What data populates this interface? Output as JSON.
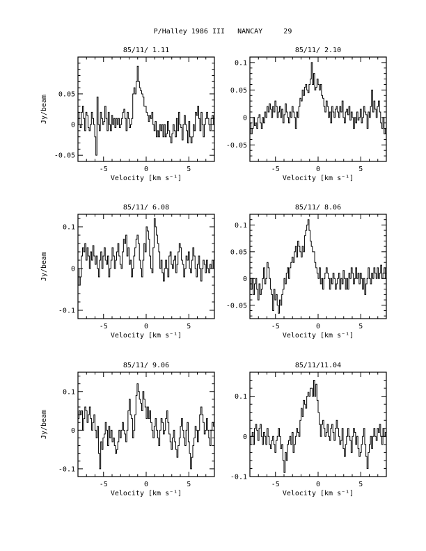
{
  "page": {
    "title": "P/Halley 1986 III   NANCAY     29"
  },
  "chart_data": [
    {
      "type": "line",
      "style": "step",
      "title": "85/11/ 1.11",
      "xlabel": "Velocity [km s⁻¹]",
      "ylabel": "Jy/beam",
      "xlim": [
        -8,
        8
      ],
      "ylim": [
        -0.06,
        0.11
      ],
      "xticks": [
        -5,
        0,
        5
      ],
      "yticks": [
        -0.05,
        0,
        0.05
      ],
      "ytick_labels": [
        "-0.05",
        "0",
        "0.05"
      ],
      "grid": false,
      "series": [
        {
          "values": [
            0.02,
            0.0,
            -0.005,
            0.02,
            0.03,
            0.01,
            -0.01,
            0.02,
            0.015,
            -0.005,
            -0.01,
            0.0,
            0.02,
            0.01,
            0.0,
            -0.02,
            -0.05,
            0.045,
            0.0,
            -0.01,
            0.02,
            0.01,
            0.0,
            0.005,
            0.03,
            0.01,
            -0.01,
            0.02,
            0.0,
            -0.01,
            0.015,
            0.0,
            0.01,
            -0.005,
            0.01,
            0.0,
            0.01,
            -0.005,
            0.0,
            0.01,
            0.02,
            0.025,
            0.01,
            -0.01,
            0.02,
            0.01,
            -0.005,
            0.0,
            0.01,
            0.05,
            0.06,
            0.05,
            0.07,
            0.095,
            0.07,
            0.06,
            0.055,
            0.05,
            0.045,
            0.03,
            0.03,
            0.02,
            0.015,
            0.005,
            0.015,
            0.01,
            0.02,
            0.0,
            -0.01,
            0.005,
            -0.02,
            -0.01,
            -0.02,
            0.0,
            -0.01,
            0.0,
            -0.02,
            0.0,
            -0.02,
            -0.015,
            0.005,
            -0.01,
            -0.02,
            -0.03,
            -0.015,
            0.0,
            -0.01,
            -0.02,
            0.01,
            -0.01,
            0.02,
            0.0,
            -0.005,
            -0.025,
            0.0,
            0.015,
            0.0,
            -0.01,
            -0.03,
            0.005,
            -0.02,
            -0.03,
            -0.02,
            0.0,
            -0.01,
            0.02,
            0.015,
            0.03,
            0.01,
            -0.01,
            0.02,
            0.0,
            -0.02,
            0.0,
            0.01,
            0.02,
            0.01,
            0.0,
            -0.01,
            0.01,
            0.015,
            0.0
          ]
        }
      ]
    },
    {
      "type": "line",
      "style": "step",
      "title": "85/11/ 2.10",
      "xlabel": "Velocity [km s⁻¹]",
      "ylabel": "",
      "xlim": [
        -8,
        8
      ],
      "ylim": [
        -0.08,
        0.11
      ],
      "xticks": [
        -5,
        0,
        5
      ],
      "yticks": [
        -0.05,
        0,
        0.05,
        0.1
      ],
      "ytick_labels": [
        "-0.05",
        "0",
        "0.05",
        "0.1"
      ],
      "grid": false,
      "series": [
        {
          "values": [
            -0.01,
            -0.03,
            -0.02,
            0.0,
            -0.015,
            -0.01,
            -0.02,
            0.0,
            0.005,
            -0.01,
            -0.02,
            0.0,
            -0.01,
            0.01,
            0.0,
            0.02,
            0.01,
            0.025,
            0.015,
            0.0,
            0.02,
            0.01,
            0.03,
            0.02,
            0.0,
            0.01,
            0.02,
            0.0,
            0.015,
            -0.01,
            0.005,
            0.025,
            0.01,
            0.0,
            -0.01,
            0.01,
            0.0,
            0.02,
            0.01,
            0.0,
            -0.02,
            0.01,
            0.0,
            0.02,
            0.035,
            0.03,
            0.05,
            0.04,
            0.055,
            0.06,
            0.05,
            0.045,
            0.06,
            0.07,
            0.1,
            0.06,
            0.08,
            0.05,
            0.055,
            0.07,
            0.06,
            0.05,
            0.06,
            0.04,
            0.035,
            0.02,
            0.01,
            0.03,
            0.02,
            0.0,
            0.01,
            -0.01,
            0.02,
            0.01,
            0.0,
            0.015,
            0.02,
            0.01,
            0.0,
            0.02,
            0.01,
            0.03,
            0.0,
            -0.01,
            0.01,
            0.015,
            0.005,
            0.02,
            -0.005,
            0.01,
            0.0,
            -0.02,
            0.0,
            -0.01,
            0.01,
            -0.005,
            0.0,
            0.015,
            -0.01,
            0.0,
            0.02,
            0.01,
            0.005,
            -0.02,
            0.01,
            0.0,
            0.02,
            0.05,
            0.01,
            0.03,
            0.015,
            0.0,
            0.02,
            0.03,
            0.01,
            -0.01,
            -0.02,
            0.0,
            -0.03,
            -0.02
          ]
        }
      ]
    },
    {
      "type": "line",
      "style": "step",
      "title": "85/11/ 6.08",
      "xlabel": "Velocity [km s⁻¹]",
      "ylabel": "Jy/beam",
      "xlim": [
        -8,
        8
      ],
      "ylim": [
        -0.12,
        0.13
      ],
      "xticks": [
        -5,
        0,
        5
      ],
      "yticks": [
        -0.1,
        0,
        0.1
      ],
      "ytick_labels": [
        "-0.1",
        "0",
        "0.1"
      ],
      "grid": false,
      "series": [
        {
          "values": [
            0.0,
            -0.04,
            -0.02,
            0.03,
            0.05,
            0.04,
            0.06,
            0.02,
            0.05,
            0.03,
            0.0,
            0.04,
            0.02,
            0.055,
            0.03,
            0.01,
            0.03,
            0.0,
            -0.02,
            0.02,
            0.04,
            0.0,
            0.03,
            0.05,
            0.02,
            0.01,
            0.03,
            -0.02,
            0.0,
            0.02,
            0.05,
            0.03,
            0.0,
            0.02,
            0.04,
            0.06,
            0.03,
            0.01,
            0.0,
            0.04,
            0.07,
            0.06,
            0.08,
            0.03,
            0.05,
            0.01,
            0.02,
            -0.02,
            0.0,
            0.03,
            0.05,
            0.07,
            0.08,
            0.06,
            0.02,
            0.0,
            -0.02,
            0.02,
            0.06,
            0.04,
            0.1,
            0.09,
            0.07,
            0.03,
            0.0,
            -0.01,
            0.05,
            0.12,
            0.1,
            0.08,
            0.06,
            0.04,
            0.0,
            0.02,
            -0.01,
            -0.03,
            0.0,
            0.02,
            0.0,
            -0.02,
            0.03,
            0.04,
            0.01,
            0.0,
            0.02,
            0.03,
            -0.01,
            0.01,
            0.04,
            0.06,
            0.05,
            0.02,
            0.01,
            -0.02,
            0.0,
            0.03,
            0.02,
            0.04,
            0.0,
            -0.01,
            0.02,
            0.05,
            0.03,
            0.0,
            -0.02,
            0.01,
            0.03,
            0.0,
            -0.03,
            0.0,
            0.02,
            0.01,
            -0.01,
            0.02,
            0.0,
            -0.01,
            0.01,
            0.0,
            0.02,
            0.0
          ]
        }
      ]
    },
    {
      "type": "line",
      "style": "step",
      "title": "85/11/ 8.06",
      "xlabel": "Velocity [km s⁻¹]",
      "ylabel": "",
      "xlim": [
        -8,
        8
      ],
      "ylim": [
        -0.075,
        0.12
      ],
      "xticks": [
        -5,
        0,
        5
      ],
      "yticks": [
        -0.05,
        0,
        0.05,
        0.1
      ],
      "ytick_labels": [
        "-0.05",
        "0",
        "0.05",
        "0.1"
      ],
      "grid": false,
      "series": [
        {
          "values": [
            0.0,
            -0.02,
            0.0,
            -0.03,
            -0.01,
            0.0,
            -0.02,
            -0.04,
            -0.01,
            -0.03,
            -0.02,
            0.0,
            0.02,
            -0.01,
            0.0,
            0.03,
            0.02,
            0.0,
            -0.02,
            -0.03,
            -0.06,
            -0.02,
            -0.04,
            -0.03,
            -0.05,
            -0.065,
            -0.04,
            -0.05,
            -0.03,
            -0.02,
            0.0,
            -0.01,
            0.01,
            0.02,
            0.0,
            0.02,
            0.03,
            0.04,
            0.03,
            0.05,
            0.06,
            0.04,
            0.07,
            0.06,
            0.05,
            0.04,
            0.06,
            0.05,
            0.08,
            0.09,
            0.1,
            0.11,
            0.09,
            0.07,
            0.06,
            0.05,
            0.05,
            0.03,
            0.02,
            0.01,
            0.0,
            0.02,
            -0.01,
            0.0,
            -0.02,
            0.0,
            0.01,
            0.02,
            0.01,
            0.0,
            -0.02,
            0.0,
            -0.01,
            0.01,
            0.0,
            -0.02,
            -0.01,
            0.0,
            0.01,
            -0.02,
            0.0,
            -0.01,
            0.015,
            0.0,
            -0.02,
            0.0,
            -0.02,
            0.01,
            0.0,
            0.02,
            0.01,
            -0.01,
            0.0,
            0.02,
            0.0,
            0.01,
            -0.01,
            0.01,
            0.0,
            -0.02,
            0.0,
            -0.03,
            -0.01,
            0.0,
            0.02,
            0.0,
            -0.01,
            0.01,
            0.0,
            0.02,
            0.01,
            0.0,
            0.02,
            0.0,
            0.01,
            0.025,
            0.0,
            0.01,
            0.02,
            0.0
          ]
        }
      ]
    },
    {
      "type": "line",
      "style": "step",
      "title": "85/11/ 9.06",
      "xlabel": "Velocity [km s⁻¹]",
      "ylabel": "Jy/beam",
      "xlim": [
        -8,
        8
      ],
      "ylim": [
        -0.12,
        0.15
      ],
      "xticks": [
        -5,
        0,
        5
      ],
      "yticks": [
        -0.1,
        0,
        0.1
      ],
      "ytick_labels": [
        "-0.1",
        "0",
        "0.1"
      ],
      "grid": false,
      "series": [
        {
          "values": [
            0.03,
            0.05,
            0.04,
            0.05,
            0.0,
            0.03,
            0.06,
            0.05,
            0.02,
            0.04,
            0.06,
            0.03,
            0.0,
            0.02,
            0.04,
            0.0,
            -0.02,
            0.01,
            -0.06,
            -0.1,
            -0.03,
            -0.05,
            -0.02,
            -0.01,
            0.02,
            0.0,
            -0.04,
            0.01,
            -0.02,
            0.0,
            -0.03,
            -0.02,
            -0.04,
            -0.06,
            -0.05,
            -0.03,
            0.0,
            -0.02,
            0.0,
            0.02,
            0.0,
            -0.01,
            -0.03,
            0.0,
            0.05,
            0.08,
            0.04,
            0.03,
            -0.02,
            0.0,
            0.04,
            0.09,
            0.12,
            0.1,
            0.08,
            0.07,
            0.05,
            0.1,
            0.08,
            0.06,
            0.03,
            0.06,
            0.03,
            0.05,
            0.02,
            0.0,
            -0.02,
            0.01,
            0.03,
            0.0,
            -0.02,
            -0.04,
            0.0,
            0.03,
            0.02,
            -0.01,
            0.0,
            0.03,
            0.05,
            0.02,
            -0.01,
            -0.03,
            -0.05,
            -0.02,
            0.0,
            -0.03,
            -0.05,
            -0.07,
            -0.04,
            -0.02,
            0.01,
            0.03,
            0.0,
            -0.02,
            -0.04,
            0.0,
            0.02,
            -0.03,
            -0.06,
            -0.1,
            -0.07,
            -0.04,
            -0.02,
            0.01,
            0.0,
            -0.03,
            0.0,
            0.04,
            0.06,
            0.04,
            0.02,
            -0.01,
            0.0,
            0.03,
            0.0,
            -0.02,
            -0.04,
            0.0,
            0.02,
            0.01
          ]
        }
      ]
    },
    {
      "type": "line",
      "style": "step",
      "title": "85/11/11.04",
      "xlabel": "Velocity [km s⁻¹]",
      "ylabel": "",
      "xlim": [
        -8,
        8
      ],
      "ylim": [
        -0.1,
        0.16
      ],
      "xticks": [
        -5,
        0,
        5
      ],
      "yticks": [
        -0.1,
        0,
        0.1
      ],
      "ytick_labels": [
        "-0.1",
        "0",
        "0.1"
      ],
      "grid": false,
      "series": [
        {
          "values": [
            -0.02,
            0.0,
            0.01,
            -0.02,
            0.02,
            0.03,
            0.015,
            -0.01,
            0.02,
            0.03,
            0.0,
            -0.02,
            0.01,
            0.0,
            -0.02,
            0.02,
            0.0,
            -0.02,
            -0.03,
            -0.01,
            0.0,
            -0.02,
            -0.04,
            -0.01,
            0.0,
            0.02,
            0.0,
            -0.03,
            -0.02,
            -0.06,
            -0.09,
            -0.04,
            -0.06,
            -0.02,
            -0.01,
            0.0,
            -0.02,
            0.01,
            -0.04,
            -0.02,
            0.0,
            0.02,
            0.01,
            0.0,
            0.04,
            0.07,
            0.05,
            0.09,
            0.08,
            0.07,
            0.1,
            0.11,
            0.1,
            0.12,
            0.12,
            0.1,
            0.14,
            0.1,
            0.13,
            0.09,
            0.06,
            0.03,
            0.0,
            0.03,
            0.04,
            0.02,
            0.0,
            0.01,
            0.03,
            0.0,
            -0.01,
            0.02,
            0.03,
            0.01,
            -0.01,
            0.02,
            0.04,
            0.02,
            0.0,
            -0.02,
            -0.01,
            0.02,
            -0.03,
            -0.05,
            -0.02,
            0.0,
            0.02,
            0.0,
            -0.01,
            -0.04,
            0.0,
            0.02,
            0.01,
            -0.02,
            0.0,
            -0.03,
            -0.05,
            -0.04,
            -0.02,
            0.0,
            0.02,
            -0.02,
            -0.05,
            -0.08,
            -0.04,
            -0.02,
            0.0,
            -0.03,
            0.0,
            0.02,
            0.0,
            -0.01,
            0.02,
            0.01,
            0.03,
            0.0,
            -0.02,
            0.02,
            0.0,
            0.01
          ]
        }
      ]
    }
  ]
}
